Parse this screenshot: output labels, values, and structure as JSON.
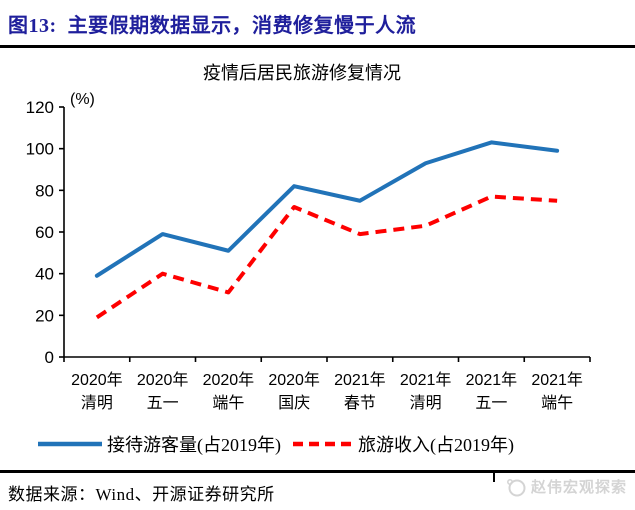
{
  "header": {
    "title": "图13:  主要假期数据显示，消费修复慢于人流"
  },
  "chart_data": {
    "type": "line",
    "title": "疫情后居民旅游修复情况",
    "ylabel": "(%)",
    "xlabel": "",
    "ylim": [
      0,
      120
    ],
    "ytick_step": 20,
    "grid": false,
    "legend_position": "bottom",
    "categories": [
      {
        "year": "2020年",
        "holiday": "清明"
      },
      {
        "year": "2020年",
        "holiday": "五一"
      },
      {
        "year": "2020年",
        "holiday": "端午"
      },
      {
        "year": "2020年",
        "holiday": "国庆"
      },
      {
        "year": "2021年",
        "holiday": "春节"
      },
      {
        "year": "2021年",
        "holiday": "清明"
      },
      {
        "year": "2021年",
        "holiday": "五一"
      },
      {
        "year": "2021年",
        "holiday": "端午"
      }
    ],
    "series": [
      {
        "name": "接待游客量(占2019年)",
        "color": "#2173B8",
        "dash": "solid",
        "values": [
          39,
          59,
          51,
          82,
          75,
          93,
          103,
          99
        ]
      },
      {
        "name": "旅游收入(占2019年)",
        "color": "#FE0000",
        "dash": "dashed",
        "values": [
          19,
          40,
          31,
          72,
          59,
          63,
          77,
          75
        ]
      }
    ]
  },
  "footer": {
    "source": "数据来源：Wind、开源证券研究所",
    "watermark": {
      "label": "赵伟宏观探索"
    }
  },
  "colors": {
    "title_navy": "#1F1F9C",
    "axis_black": "#000000",
    "line_blue": "#2173B8",
    "line_red": "#FE0000",
    "watermark_gray": "#D4D4D4"
  }
}
